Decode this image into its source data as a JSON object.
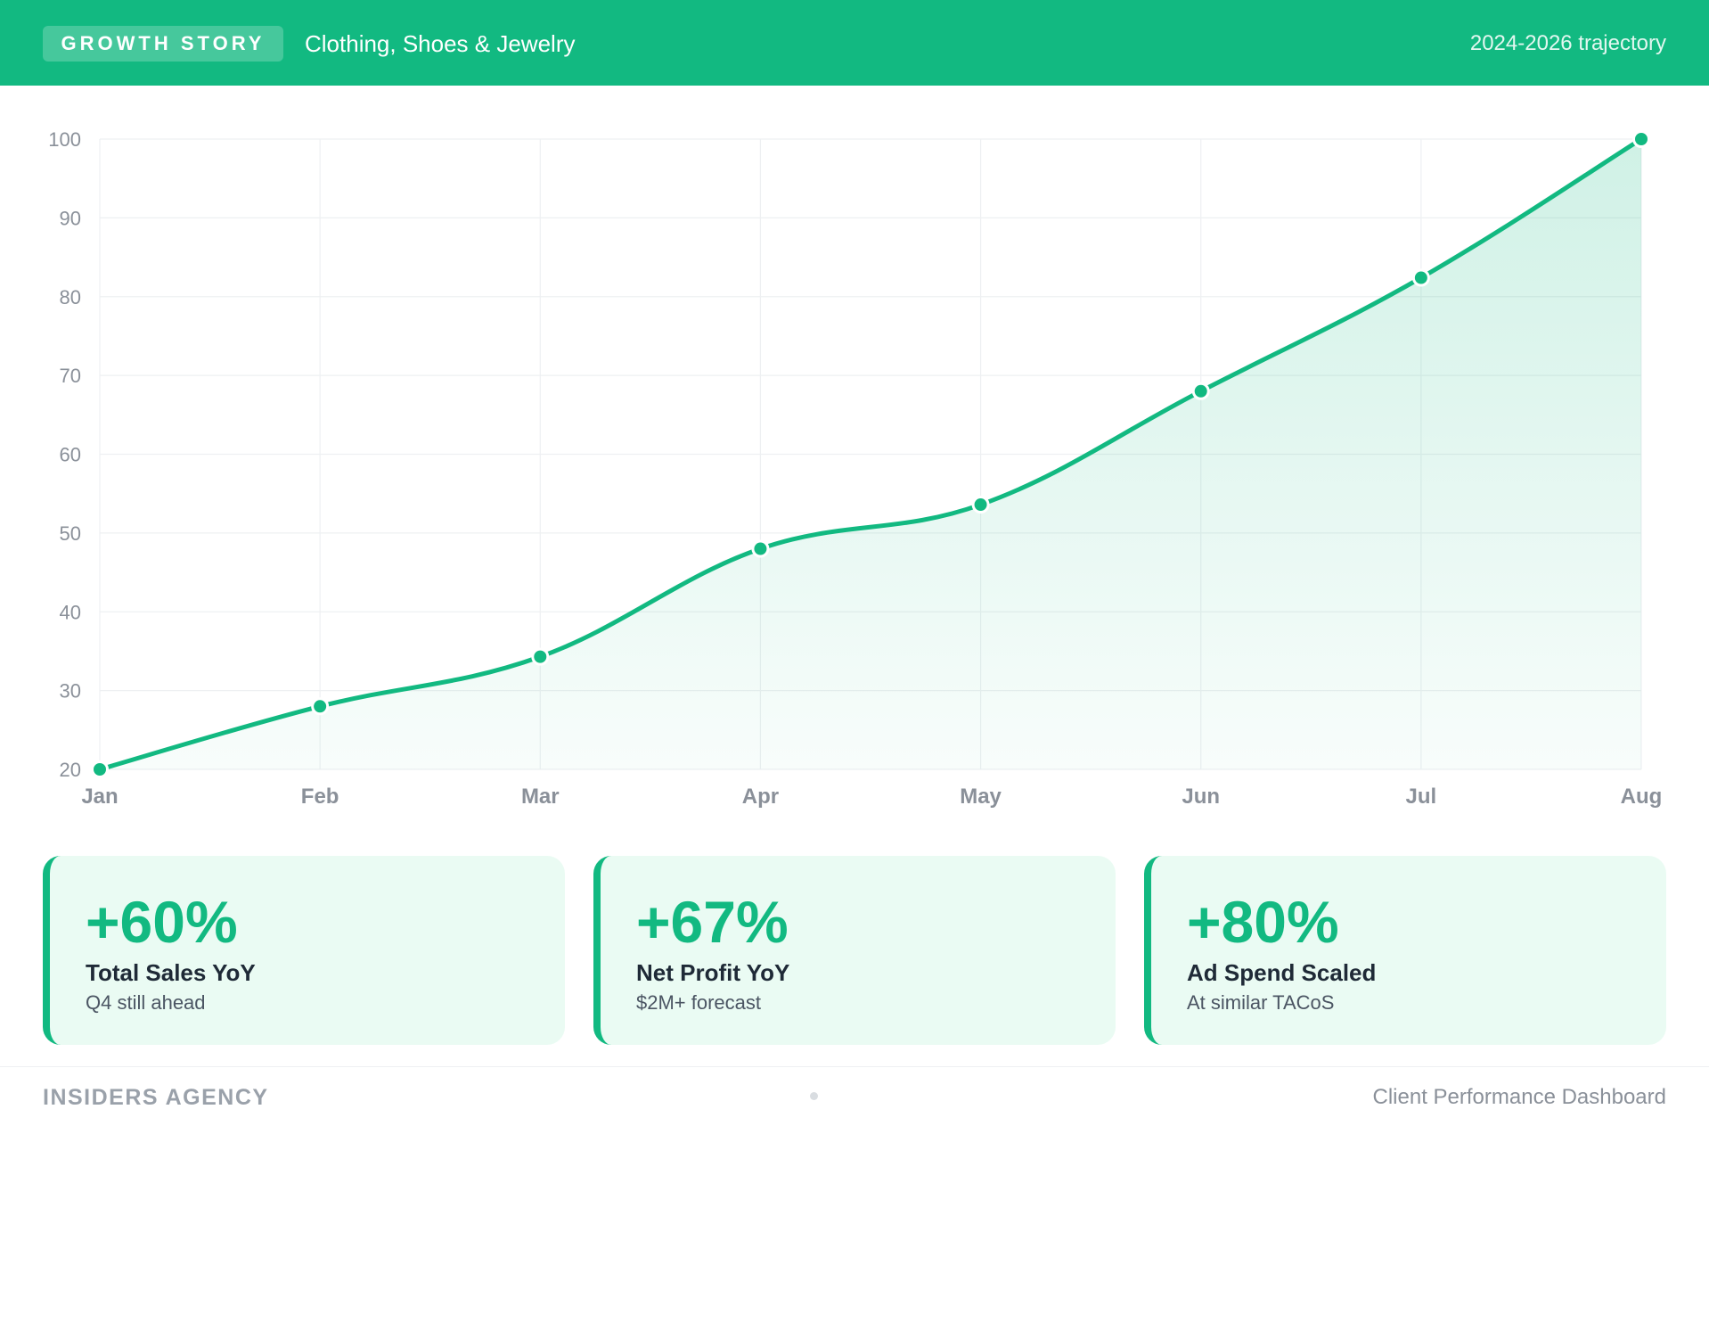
{
  "header": {
    "badge": "GROWTH STORY",
    "subtitle": "Clothing, Shoes & Jewelry",
    "range": "2024-2026 trajectory"
  },
  "chart_data": {
    "type": "area",
    "title": "",
    "xlabel": "",
    "ylabel": "",
    "categories": [
      "Jan",
      "Feb",
      "Mar",
      "Apr",
      "May",
      "Jun",
      "Jul",
      "Aug"
    ],
    "series": [
      {
        "values": [
          20,
          28,
          34.3,
          48,
          53.6,
          68,
          82.4,
          100
        ]
      }
    ],
    "ylim": [
      20,
      100
    ],
    "yticks": [
      20,
      30,
      40,
      50,
      60,
      70,
      80,
      90,
      100
    ],
    "grid": true,
    "legend": "none",
    "colors": {
      "line": "#12b981",
      "grid": "#eef0f2",
      "tick": "#8a9099"
    }
  },
  "cards": [
    {
      "value": "+60%",
      "label": "Total Sales YoY",
      "sub": "Q4 still ahead"
    },
    {
      "value": "+67%",
      "label": "Net Profit YoY",
      "sub": "$2M+ forecast"
    },
    {
      "value": "+80%",
      "label": "Ad Spend Scaled",
      "sub": "At similar TACoS"
    }
  ],
  "footer": {
    "brand": "INSIDERS AGENCY",
    "right": "Client Performance Dashboard"
  },
  "colors": {
    "accent": "#12b981",
    "card_bg": "#eafbf3"
  }
}
